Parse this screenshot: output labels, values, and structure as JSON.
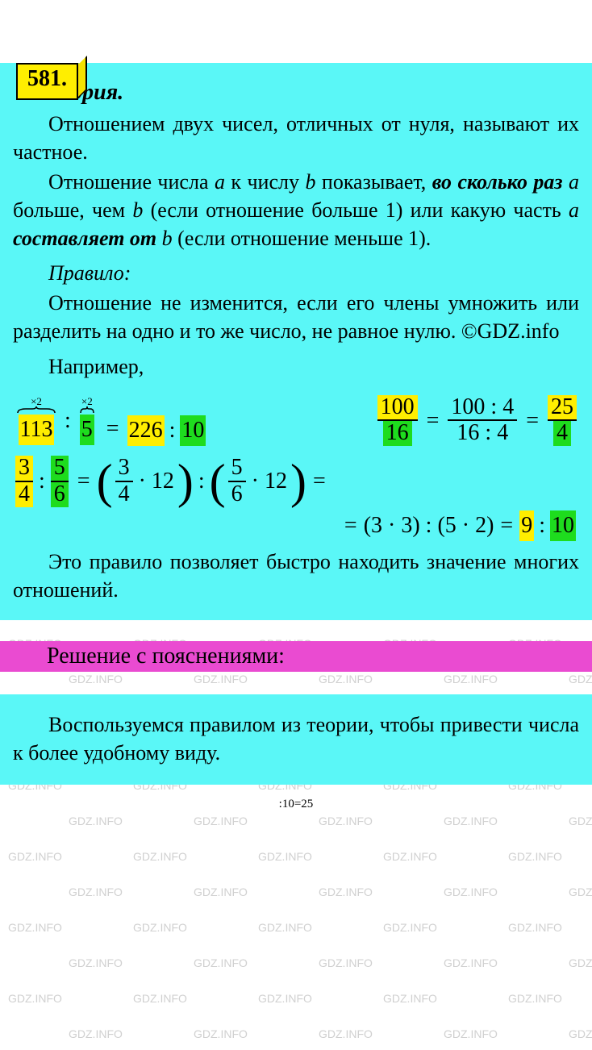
{
  "problem_number": "581.",
  "theory": {
    "title": "Теория.",
    "para1": "Отношением двух чисел, отличных от нуля, называют их частное.",
    "para2_a": "Отношение числа ",
    "para2_b": " к числу ",
    "para2_c": " показывает, ",
    "para2_bold1": "во сколько раз",
    "para2_d": " больше, чем ",
    "para2_e": " (если отношение больше 1) или какую часть ",
    "para2_bold2": "составляет от",
    "para2_f": " (если отношение меньше 1).",
    "var_a": "a",
    "var_b": "b",
    "rule_label": "Правило:",
    "rule_text": "Отношение не изменится, если его члены умножить или разделить на одно и то же число, не равное нулю. ©GDZ.info",
    "example_label": "Например,",
    "closing": "Это правило позволяет быстро находить значение многих отношений."
  },
  "math1": {
    "brace_label": "×2",
    "n1": "113",
    "n2": "5",
    "eq": "=",
    "n3": "226",
    "colon": ":",
    "n4": "10",
    "frac1_num": "100",
    "frac1_den": "16",
    "frac2_num": "100 : 4",
    "frac2_den": "16 : 4",
    "frac3_num": "25",
    "frac3_den": "4"
  },
  "math2": {
    "f1_num": "3",
    "f1_den": "4",
    "f2_num": "5",
    "f2_den": "6",
    "mult12": "· 12",
    "eq": "=",
    "colon": ":",
    "result_a": "(3 · 3) : (5 · 2)",
    "r1": "9",
    "r2": "10"
  },
  "solution_header": "Решение с пояснениями:",
  "solution_text": "Воспользуемся правилом из теории, чтобы привести числа к более удобному виду.",
  "bottom_calc": ":10=25",
  "colors": {
    "cyan": "#5af7f7",
    "yellow": "#ffee00",
    "green": "#1edc1e",
    "magenta": "#ea4bd1",
    "watermark": "#d0d0d0"
  },
  "watermark_text": "GDZ.INFO"
}
